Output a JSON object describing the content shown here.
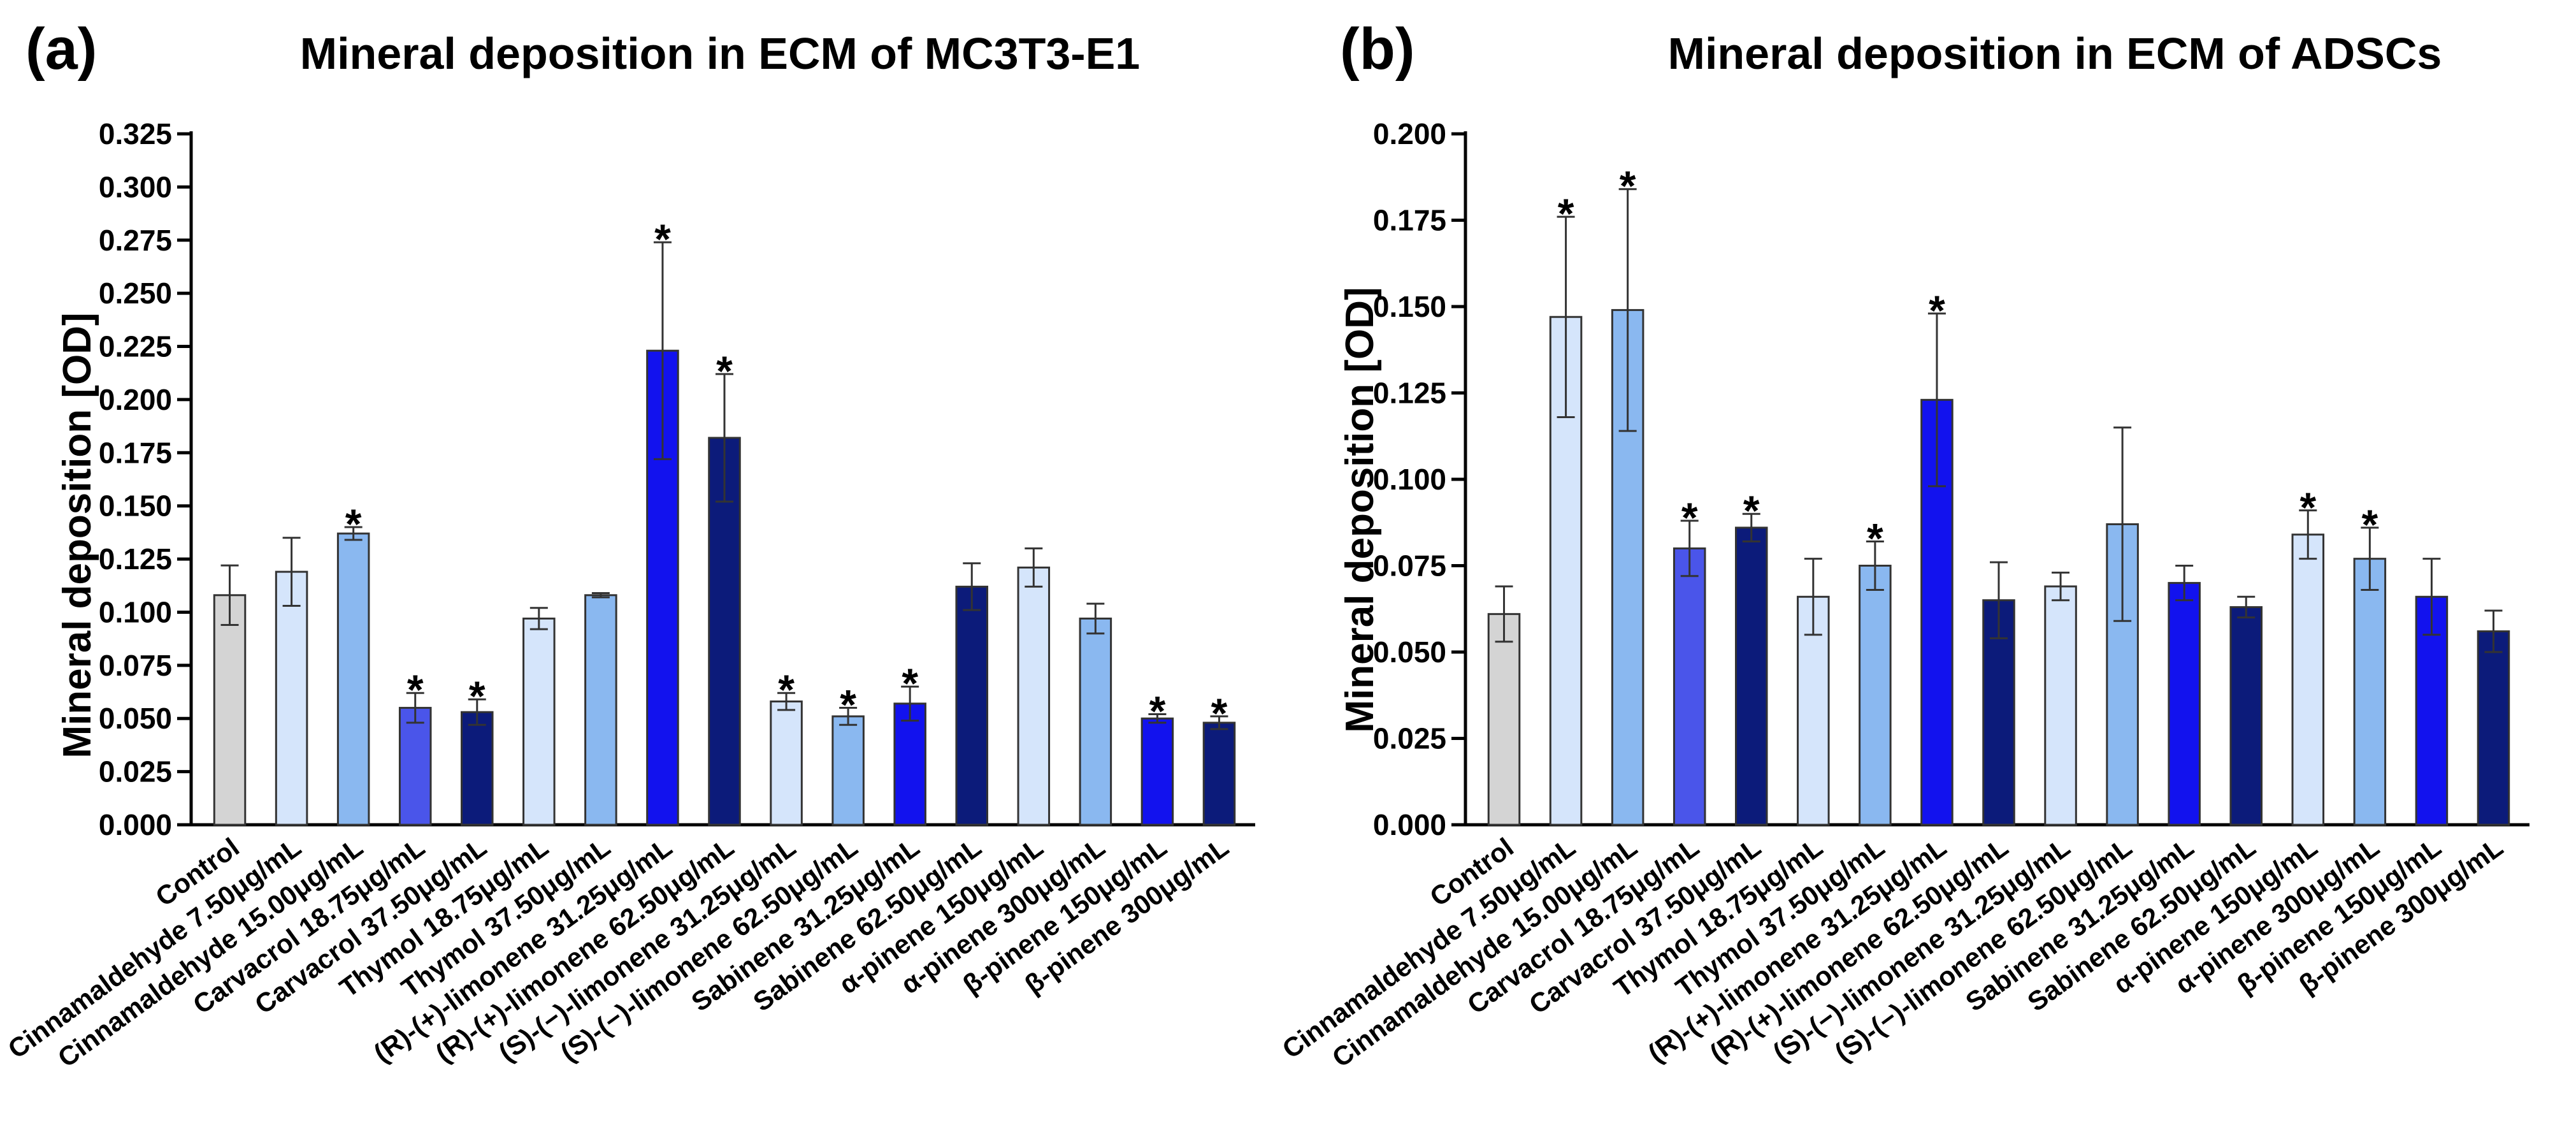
{
  "chart_data": [
    {
      "type": "bar",
      "panel": "(a)",
      "title": "Mineral deposition in ECM of MC3T3-E1",
      "xlabel": "",
      "ylabel": "Mineral deposition [OD]",
      "ylim": [
        0,
        0.325
      ],
      "yticks": [
        "0.000",
        "0.025",
        "0.050",
        "0.075",
        "0.100",
        "0.125",
        "0.150",
        "0.175",
        "0.200",
        "0.225",
        "0.250",
        "0.275",
        "0.300",
        "0.325"
      ],
      "categories": [
        "Control",
        "Cinnamaldehyde 7.50μg/mL",
        "Cinnamaldehyde 15.00μg/mL",
        "Carvacrol 18.75μg/mL",
        "Carvacrol 37.50μg/mL",
        "Thymol 18.75μg/mL",
        "Thymol 37.50μg/mL",
        "(R)-(+)-limonene 31.25μg/mL",
        "(R)-(+)-limonene 62.50μg/mL",
        "(S)-(−)-limonene 31.25μg/mL",
        "(S)-(−)-limonene 62.50μg/mL",
        "Sabinene 31.25μg/mL",
        "Sabinene 62.50μg/mL",
        "α-pinene 150μg/mL",
        "α-pinene 300μg/mL",
        "β-pinene 150μg/mL",
        "β-pinene 300μg/mL"
      ],
      "values": [
        0.108,
        0.119,
        0.137,
        0.055,
        0.053,
        0.097,
        0.108,
        0.223,
        0.182,
        0.058,
        0.051,
        0.057,
        0.112,
        0.121,
        0.097,
        0.05,
        0.048
      ],
      "errors": [
        0.014,
        0.016,
        0.003,
        0.007,
        0.006,
        0.005,
        0.001,
        0.051,
        0.03,
        0.004,
        0.004,
        0.008,
        0.011,
        0.009,
        0.007,
        0.002,
        0.003
      ],
      "significant": [
        false,
        false,
        true,
        true,
        true,
        false,
        false,
        true,
        true,
        true,
        true,
        true,
        false,
        false,
        false,
        true,
        true
      ],
      "colors": [
        "#d4d4d4",
        "#d5e5fb",
        "#8ab8f0",
        "#4a55ea",
        "#0c1b7a",
        "#d5e5fb",
        "#8ab8f0",
        "#1212ee",
        "#0c1b7a",
        "#d5e5fb",
        "#8ab8f0",
        "#1212ee",
        "#0c1b7a",
        "#d5e5fb",
        "#8ab8f0",
        "#1212ee",
        "#0c1b7a"
      ],
      "sig_marker": "*"
    },
    {
      "type": "bar",
      "panel": "(b)",
      "title": "Mineral deposition in ECM of ADSCs",
      "xlabel": "",
      "ylabel": "Mineral deposition [OD]",
      "ylim": [
        0,
        0.2
      ],
      "yticks": [
        "0.000",
        "0.025",
        "0.050",
        "0.075",
        "0.100",
        "0.125",
        "0.150",
        "0.175",
        "0.200"
      ],
      "categories": [
        "Control",
        "Cinnamaldehyde 7.50μg/mL",
        "Cinnamaldehyde 15.00μg/mL",
        "Carvacrol 18.75μg/mL",
        "Carvacrol 37.50μg/mL",
        "Thymol 18.75μg/mL",
        "Thymol 37.50μg/mL",
        "(R)-(+)-limonene 31.25μg/mL",
        "(R)-(+)-limonene 62.50μg/mL",
        "(S)-(−)-limonene 31.25μg/mL",
        "(S)-(−)-limonene 62.50μg/mL",
        "Sabinene 31.25μg/mL",
        "Sabinene 62.50μg/mL",
        "α-pinene 150μg/mL",
        "α-pinene 300μg/mL",
        "β-pinene 150μg/mL",
        "β-pinene 300μg/mL"
      ],
      "values": [
        0.061,
        0.147,
        0.149,
        0.08,
        0.086,
        0.066,
        0.075,
        0.123,
        0.065,
        0.069,
        0.087,
        0.07,
        0.063,
        0.084,
        0.077,
        0.066,
        0.056
      ],
      "errors": [
        0.008,
        0.029,
        0.035,
        0.008,
        0.004,
        0.011,
        0.007,
        0.025,
        0.011,
        0.004,
        0.028,
        0.005,
        0.003,
        0.007,
        0.009,
        0.011,
        0.006
      ],
      "significant": [
        false,
        true,
        true,
        true,
        true,
        false,
        true,
        true,
        false,
        false,
        false,
        false,
        false,
        true,
        true,
        false,
        false
      ],
      "colors": [
        "#d4d4d4",
        "#d5e5fb",
        "#8ab8f0",
        "#4a55ea",
        "#0c1b7a",
        "#d5e5fb",
        "#8ab8f0",
        "#1212ee",
        "#0c1b7a",
        "#d5e5fb",
        "#8ab8f0",
        "#1212ee",
        "#0c1b7a",
        "#d5e5fb",
        "#8ab8f0",
        "#1212ee",
        "#0c1b7a"
      ],
      "sig_marker": "*"
    }
  ]
}
